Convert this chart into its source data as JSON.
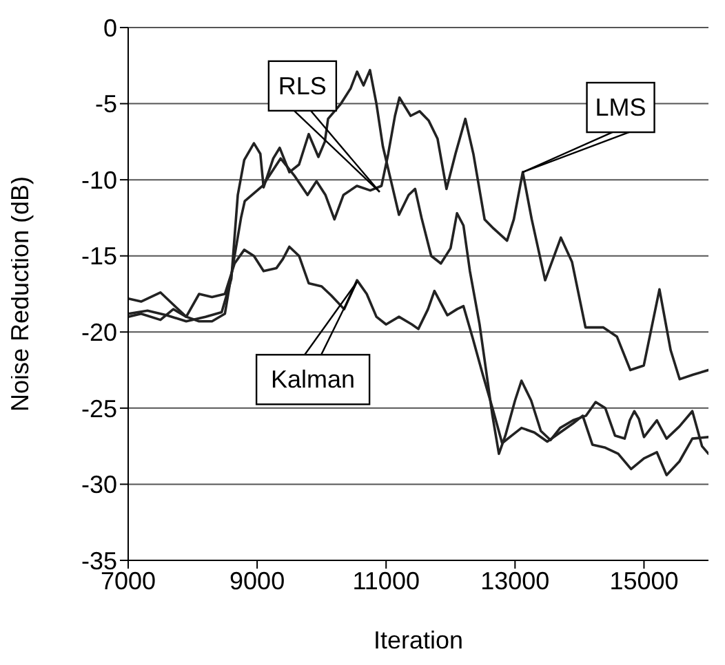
{
  "chart_data": {
    "type": "line",
    "xlabel": "Iteration",
    "ylabel": "Noise Reduction (dB)",
    "xlim": [
      7000,
      16000
    ],
    "xticks": [
      7000,
      9000,
      11000,
      13000,
      15000
    ],
    "ylim": [
      -35,
      0
    ],
    "yticks": [
      -35,
      -30,
      -25,
      -20,
      -15,
      -10,
      -5,
      0
    ],
    "grid": "y",
    "marker": "none",
    "line_style": "solid",
    "series": [
      {
        "color": "#222222",
        "x": [
          7000,
          7300,
          7600,
          7900,
          8200,
          8450,
          8600,
          8700,
          8800,
          8950,
          9050,
          9100,
          9250,
          9350,
          9500,
          9650,
          9800,
          9950,
          10050,
          10100,
          10300,
          10450,
          10550,
          10650,
          10750,
          10850,
          10950,
          11100,
          11200,
          11350,
          11450,
          11550,
          11700,
          11850,
          12000,
          12100,
          12200,
          12300,
          12450,
          12550,
          12650,
          12750,
          12850,
          13000,
          13100,
          13250,
          13400,
          13550,
          13700,
          13900,
          14100,
          14250,
          14400,
          14550,
          14700,
          14780,
          14850,
          14920,
          15000,
          15200,
          15350,
          15550,
          15750,
          15900,
          16000
        ],
        "values": [
          -18.8,
          -18.6,
          -18.9,
          -19.3,
          -19,
          -18.7,
          -16.5,
          -11,
          -8.7,
          -7.6,
          -8.3,
          -10.5,
          -8.6,
          -7.9,
          -9.5,
          -9,
          -7,
          -8.5,
          -7.5,
          -6,
          -5,
          -4,
          -2.9,
          -3.8,
          -2.8,
          -5,
          -7.8,
          -10.5,
          -12.3,
          -11,
          -10.6,
          -12.5,
          -15,
          -15.5,
          -14.5,
          -12.2,
          -13,
          -16,
          -19.5,
          -22.5,
          -25.5,
          -28,
          -26.8,
          -24.5,
          -23.2,
          -24.5,
          -26.5,
          -27.1,
          -26.3,
          -25.8,
          -25.5,
          -24.6,
          -25,
          -26.8,
          -27,
          -25.8,
          -25.2,
          -25.7,
          -26.9,
          -25.8,
          -27,
          -26.2,
          -25.2,
          -27.5,
          -28
        ]
      },
      {
        "color": "#222222",
        "x": [
          7000,
          7200,
          7500,
          7700,
          7900,
          8100,
          8300,
          8500,
          8650,
          8750,
          8808,
          9086,
          9364,
          9573,
          9782,
          9921,
          10060,
          10199,
          10338,
          10547,
          10755,
          10929,
          11033,
          11138,
          11207,
          11381,
          11520,
          11659,
          11798,
          11937,
          12076,
          12229,
          12354,
          12528,
          12667,
          12876,
          12981,
          13120,
          13259,
          13467,
          13711,
          13884,
          14093,
          14371,
          14580,
          14788,
          14997,
          15240,
          15414,
          15553,
          15762,
          16000
        ],
        "values": [
          -19,
          -18.8,
          -19.2,
          -18.5,
          -19,
          -19.3,
          -19.3,
          -18.8,
          -15,
          -12.5,
          -11.4,
          -10.4,
          -8.6,
          -9.7,
          -11,
          -10.1,
          -11,
          -12.6,
          -11,
          -10.4,
          -10.7,
          -10.4,
          -8.3,
          -5.8,
          -4.6,
          -5.8,
          -5.5,
          -6.1,
          -7.3,
          -10.6,
          -8.3,
          -6,
          -8.3,
          -12.6,
          -13.2,
          -14,
          -12.6,
          -9.5,
          -12.6,
          -16.6,
          -13.8,
          -15.4,
          -19.7,
          -19.7,
          -20.3,
          -22.5,
          -22.2,
          -17.2,
          -21.2,
          -23.1,
          -22.8,
          -22.5
        ]
      },
      {
        "color": "#222222",
        "x": [
          7000,
          7200,
          7500,
          7700,
          7900,
          8100,
          8300,
          8500,
          8650,
          8800,
          8950,
          9100,
          9300,
          9400,
          9500,
          9650,
          9800,
          10000,
          10150,
          10350,
          10550,
          10700,
          10850,
          11000,
          11200,
          11400,
          11500,
          11650,
          11750,
          11950,
          12100,
          12200,
          12350,
          12500,
          12650,
          12800,
          12950,
          13100,
          13300,
          13500,
          13700,
          13900,
          14050,
          14200,
          14400,
          14600,
          14800,
          15000,
          15200,
          15350,
          15550,
          15750,
          16000
        ],
        "values": [
          -17.8,
          -18,
          -17.4,
          -18.2,
          -19,
          -17.5,
          -17.7,
          -17.5,
          -15.5,
          -14.6,
          -15,
          -16,
          -15.8,
          -15.2,
          -14.4,
          -15,
          -16.8,
          -17,
          -17.6,
          -18.5,
          -16.6,
          -17.5,
          -19,
          -19.5,
          -19,
          -19.5,
          -19.8,
          -18.5,
          -17.3,
          -18.9,
          -18.5,
          -18.3,
          -20.5,
          -22.8,
          -25,
          -27.3,
          -26.8,
          -26.3,
          -26.6,
          -27.2,
          -26.6,
          -26,
          -25.5,
          -27.4,
          -27.6,
          -28,
          -29,
          -28.3,
          -27.9,
          -29.4,
          -28.5,
          -27,
          -26.9
        ]
      }
    ],
    "annotations": [
      {
        "text": "RLS",
        "x": 10900,
        "y": -10.8
      },
      {
        "text": "LMS",
        "x": 13120,
        "y": -9.5
      },
      {
        "text": "Kalman",
        "x": 10550,
        "y": -16.7
      }
    ]
  }
}
